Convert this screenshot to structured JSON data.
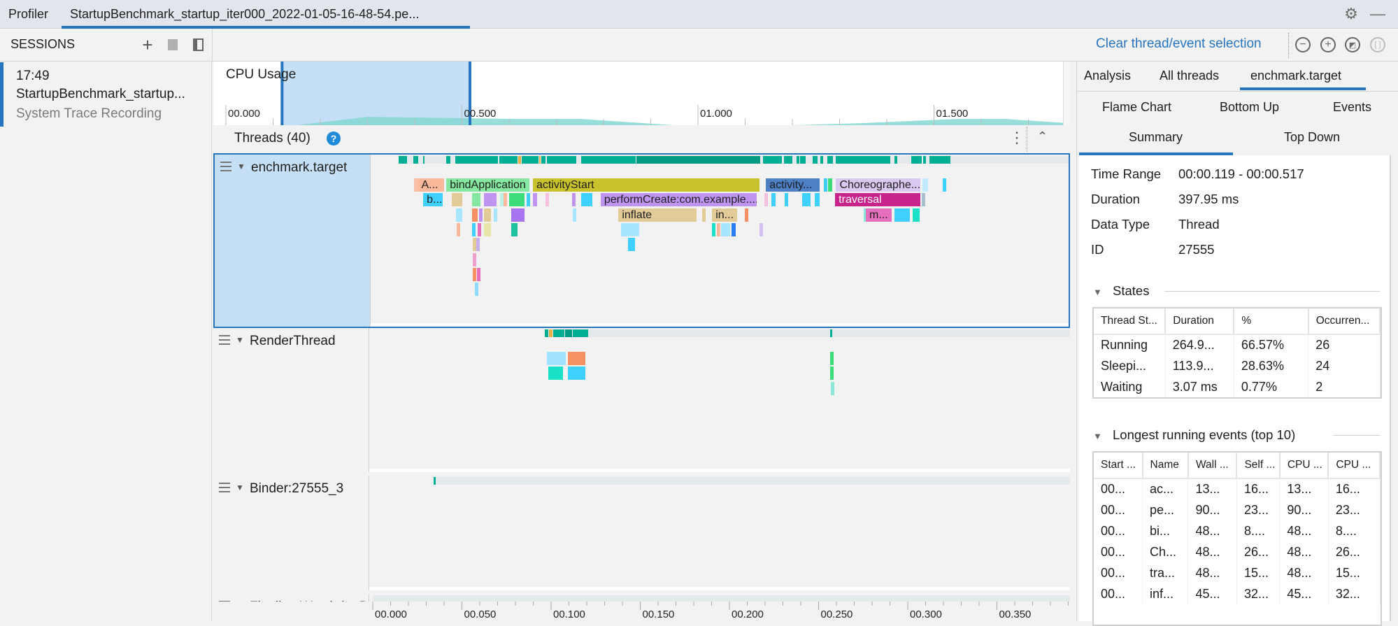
{
  "tabs": {
    "profiler": "Profiler",
    "active_file": "StartupBenchmark_startup_iter000_2022-01-05-16-48-54.pe..."
  },
  "colors": {
    "accent": "#2675bf",
    "selection": "#c5e0f6",
    "cpu_area": "#7fd6d0",
    "running": "#00ae94",
    "running_dark": "#009b80"
  },
  "toolbar": {
    "sessions_label": "SESSIONS",
    "clear_selection": "Clear thread/event selection"
  },
  "session": {
    "time": "17:49",
    "name": "StartupBenchmark_startup...",
    "type": "System Trace Recording"
  },
  "cpu": {
    "title": "CPU Usage",
    "ticks": [
      "00.000",
      "00.500",
      "01.000",
      "01.500"
    ],
    "selection_s": [
      0.119,
      0.517
    ],
    "samples": [
      [
        0.0,
        0
      ],
      [
        0.15,
        0
      ],
      [
        0.3,
        4
      ],
      [
        0.45,
        3.5
      ],
      [
        0.6,
        3
      ],
      [
        0.75,
        3
      ],
      [
        0.95,
        0
      ],
      [
        1.2,
        0
      ],
      [
        1.35,
        1
      ],
      [
        1.55,
        3
      ],
      [
        1.65,
        3
      ],
      [
        1.85,
        0
      ]
    ]
  },
  "threads": {
    "header": "Threads (40)",
    "rows": [
      {
        "name": "enchmark.target",
        "selected": true,
        "states": [
          [
            13.8,
            19,
            0
          ],
          [
            21.8,
            25,
            0
          ],
          [
            27.4,
            28.8,
            0
          ],
          [
            40.5,
            43.2,
            0
          ],
          [
            45.3,
            69.8,
            0
          ],
          [
            70.2,
            80.6,
            0
          ],
          [
            80.6,
            82.6,
            1
          ],
          [
            82.6,
            92.7,
            0
          ],
          [
            92.7,
            93.9,
            1
          ],
          [
            93.9,
            96.3,
            0
          ],
          [
            96.7,
            113.7,
            0
          ],
          [
            115.9,
            146.9,
            0
          ],
          [
            146.9,
            216.9,
            2
          ],
          [
            218,
            229,
            0
          ],
          [
            229.8,
            234.9,
            0
          ],
          [
            236.7,
            239,
            0
          ],
          [
            238.8,
            242.4,
            0
          ],
          [
            245.9,
            249,
            0
          ],
          [
            250,
            252,
            0
          ],
          [
            254,
            257.6,
            0
          ],
          [
            259,
            289.8,
            0
          ],
          [
            291.8,
            293.7,
            0
          ],
          [
            301,
            307.5,
            0
          ],
          [
            308,
            309.8,
            0
          ],
          [
            311.4,
            323.5,
            0
          ]
        ],
        "events": [
          [
            22.5,
            23.8,
            0,
            "#f9c0a8",
            ""
          ],
          [
            24.5,
            39.5,
            0,
            "#f9b99a",
            "A..."
          ],
          [
            40.5,
            87.5,
            0,
            "#86e8a0",
            "bindApplication"
          ],
          [
            89,
            216.5,
            0,
            "#c9c22c",
            "activityStart"
          ],
          [
            219.7,
            250.2,
            0,
            "#4e80c6",
            "activity..."
          ],
          [
            252,
            253.3,
            0,
            "#3fd0ff",
            ""
          ],
          [
            254.5,
            257.3,
            0,
            "#3ddc7a",
            ""
          ],
          [
            259,
            306.6,
            0,
            "#d9c8f0",
            "Choreographe..."
          ],
          [
            307.5,
            311,
            0,
            "#bfeaff",
            ""
          ],
          [
            318.8,
            320.8,
            0,
            "#3fd0ff",
            ""
          ],
          [
            27.5,
            39,
            1,
            "#3fd0ff",
            "b..."
          ],
          [
            43.5,
            49.8,
            1,
            "#e2cb97",
            ""
          ],
          [
            54.9,
            60,
            1,
            "#86e8a0",
            ""
          ],
          [
            61.6,
            69,
            1,
            "#bf94f0",
            ""
          ],
          [
            70.5,
            71.5,
            1,
            "#bff0e8",
            ""
          ],
          [
            72.5,
            73.5,
            1,
            "#f9b99a",
            ""
          ],
          [
            75.7,
            84.7,
            1,
            "#3ddc7a",
            ""
          ],
          [
            85.5,
            87.5,
            1,
            "#3fd0ff",
            ""
          ],
          [
            89,
            91.8,
            1,
            "#bf94f0",
            ""
          ],
          [
            96,
            97.5,
            1,
            "#f7c0e0",
            ""
          ],
          [
            111,
            113.3,
            1,
            "#bf94f0",
            ""
          ],
          [
            116,
            122.7,
            1,
            "#3fd0ff",
            ""
          ],
          [
            127,
            215,
            1,
            "#bf94f0",
            "performCreate:com.example...."
          ],
          [
            219,
            220.5,
            1,
            "#f7c0e0",
            ""
          ],
          [
            222.7,
            225.5,
            1,
            "#3fd0ff",
            ""
          ],
          [
            230,
            232,
            1,
            "#3fd0ff",
            ""
          ],
          [
            240,
            245,
            1,
            "#3fd0ff",
            ""
          ],
          [
            247,
            250.2,
            1,
            "#3fd0ff",
            ""
          ],
          [
            258.5,
            306.5,
            1,
            "#c8238c",
            "traversal"
          ],
          [
            307,
            308,
            1,
            "#a8c0cc",
            ""
          ],
          [
            45.9,
            49.8,
            2,
            "#a8e6ff",
            ""
          ],
          [
            54.9,
            58.4,
            2,
            "#f79163",
            ""
          ],
          [
            59,
            60,
            2,
            "#bf94f0",
            ""
          ],
          [
            61.6,
            65.9,
            2,
            "#e2cb97",
            ""
          ],
          [
            67,
            69,
            2,
            "#a8e6ff",
            ""
          ],
          [
            76.9,
            84.7,
            2,
            "#a974ef",
            ""
          ],
          [
            111.4,
            113.3,
            2,
            "#a8e6ff",
            ""
          ],
          [
            137,
            181,
            2,
            "#e2cb97",
            "inflate"
          ],
          [
            184,
            185.5,
            2,
            "#e2cb97",
            ""
          ],
          [
            189.5,
            204,
            2,
            "#e2cb97",
            "in..."
          ],
          [
            208,
            209,
            2,
            "#f79163",
            ""
          ],
          [
            274.5,
            275.3,
            2,
            "#8be8d8",
            ""
          ],
          [
            275.7,
            290.6,
            2,
            "#e56fbd",
            "m..."
          ],
          [
            291.8,
            300.8,
            2,
            "#3fd0ff",
            ""
          ],
          [
            302,
            306.3,
            2,
            "#19e0c6",
            ""
          ],
          [
            46.3,
            47.5,
            3,
            "#f9b99a",
            ""
          ],
          [
            55,
            57,
            3,
            "#3fd0ff",
            ""
          ],
          [
            57.9,
            59.7,
            3,
            "#e56fbd",
            ""
          ],
          [
            61.6,
            65.8,
            3,
            "#e8e6a8",
            ""
          ],
          [
            77,
            80.6,
            3,
            "#1fc0a0",
            ""
          ],
          [
            138.3,
            149,
            3,
            "#a8e6ff",
            ""
          ],
          [
            189.3,
            191.6,
            3,
            "#19e0c6",
            ""
          ],
          [
            192,
            194.3,
            3,
            "#f9b99a",
            ""
          ],
          [
            194.7,
            200,
            3,
            "#a8e6ff",
            ""
          ],
          [
            200.4,
            203,
            3,
            "#2a7ef0",
            ""
          ],
          [
            216,
            217,
            3,
            "#d4c0f0",
            ""
          ],
          [
            55.3,
            57,
            4,
            "#e2cb97",
            ""
          ],
          [
            57.4,
            58.4,
            4,
            "#c8b0f0",
            ""
          ],
          [
            142.4,
            146.6,
            4,
            "#3fd0ff",
            ""
          ],
          [
            55.3,
            57.3,
            5,
            "#f0a0cc",
            ""
          ],
          [
            55.3,
            56.6,
            6,
            "#f79163",
            ""
          ],
          [
            57.6,
            58.8,
            6,
            "#e56fbd",
            ""
          ],
          [
            56.4,
            57.4,
            7,
            "#8fdcff",
            ""
          ]
        ]
      },
      {
        "name": "RenderThread",
        "selected": false,
        "states": [
          [
            96.5,
            99,
            0
          ],
          [
            99,
            101,
            1
          ],
          [
            101,
            108,
            0
          ],
          [
            108,
            112,
            2
          ],
          [
            112,
            121,
            0
          ],
          [
            256.5,
            258,
            0
          ]
        ],
        "events": [
          [
            97.5,
            108.5,
            0,
            "#9ee3ff",
            ""
          ],
          [
            109.5,
            119.5,
            0,
            "#f79163",
            ""
          ],
          [
            256.5,
            258,
            0,
            "#3ddc7a",
            ""
          ],
          [
            98.5,
            107,
            1,
            "#19e0c6",
            ""
          ],
          [
            109.5,
            119.5,
            1,
            "#3fd0ff",
            ""
          ],
          [
            256.5,
            258,
            1,
            "#3ddc7a",
            ""
          ],
          [
            257,
            257.8,
            2,
            "#8be8d8",
            ""
          ]
        ]
      },
      {
        "name": "Binder:27555_3",
        "selected": false,
        "states": [
          [
            34,
            35.5,
            0
          ]
        ],
        "events": []
      },
      {
        "name": "FinalizerWatchdogDaemon",
        "selected": false,
        "states": [],
        "events": []
      }
    ]
  },
  "timeline": {
    "ticks": [
      "00.000",
      "00.050",
      "00.100",
      "00.150",
      "00.200",
      "00.250",
      "00.300",
      "00.350"
    ]
  },
  "right": {
    "tabs": [
      "Analysis",
      "All threads",
      "enchmark.target"
    ],
    "subtabs": [
      "Flame Chart",
      "Bottom Up",
      "Events",
      "Summary",
      "Top Down"
    ],
    "summary": [
      {
        "label": "Time Range",
        "value": "00:00.119 - 00:00.517"
      },
      {
        "label": "Duration",
        "value": "397.95 ms"
      },
      {
        "label": "Data Type",
        "value": "Thread"
      },
      {
        "label": "ID",
        "value": "27555"
      }
    ],
    "states": {
      "title": "States",
      "columns": [
        "Thread St...",
        "Duration",
        "%",
        "Occurren..."
      ],
      "rows": [
        [
          "Running",
          "264.9...",
          "66.57%",
          "26"
        ],
        [
          "Sleepi...",
          "113.9...",
          "28.63%",
          "24"
        ],
        [
          "Waiting",
          "3.07 ms",
          "0.77%",
          "2"
        ]
      ]
    },
    "longest": {
      "title": "Longest running events (top 10)",
      "columns": [
        "Start ...",
        "Name",
        "Wall ...",
        "Self ...",
        "CPU ...",
        "CPU ..."
      ],
      "rows": [
        [
          "00...",
          "ac...",
          "13...",
          "16...",
          "13...",
          "16..."
        ],
        [
          "00...",
          "pe...",
          "90...",
          "23...",
          "90...",
          "23..."
        ],
        [
          "00...",
          "bi...",
          "48...",
          "8....",
          "48...",
          "8...."
        ],
        [
          "00...",
          "Ch...",
          "48...",
          "26...",
          "48...",
          "26..."
        ],
        [
          "00...",
          "tra...",
          "48...",
          "15...",
          "48...",
          "15..."
        ],
        [
          "00...",
          "inf...",
          "45...",
          "32...",
          "45...",
          "32..."
        ]
      ]
    }
  }
}
